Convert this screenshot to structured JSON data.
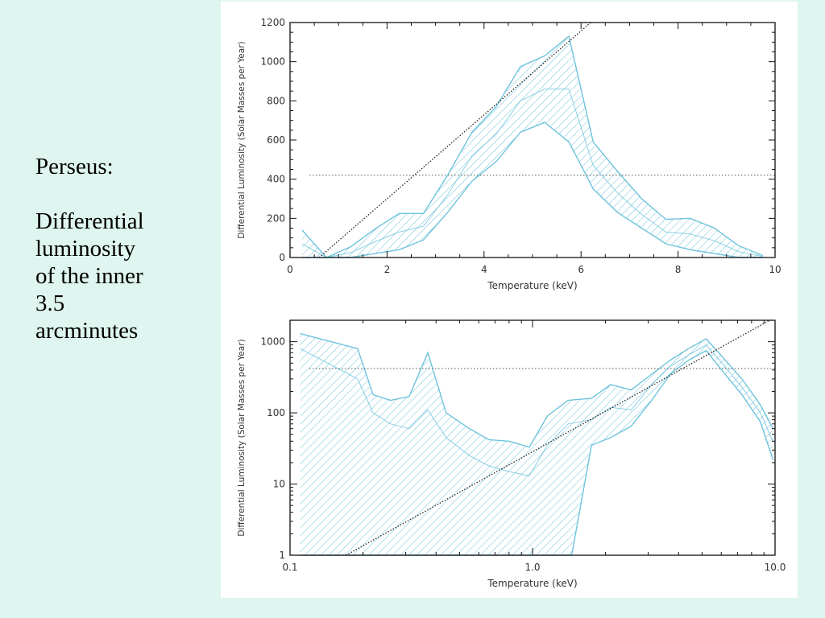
{
  "slide": {
    "title": "Perseus:",
    "body_lines": [
      "Differential",
      "luminosity",
      "of the inner",
      "3.5",
      "arcminutes"
    ]
  },
  "colors": {
    "background": "#dff5ef",
    "band": "#6fc3dc",
    "axis": "#111111"
  },
  "chart_data": [
    {
      "type": "area",
      "xlabel": "Temperature (keV)",
      "ylabel": "Differential Luminosity (Solar Masses per Year)",
      "xscale": "linear",
      "yscale": "linear",
      "xlim": [
        0,
        10
      ],
      "ylim": [
        0,
        1200
      ],
      "xticks": [
        0,
        2,
        4,
        6,
        8,
        10
      ],
      "yticks": [
        0,
        200,
        400,
        600,
        800,
        1000,
        1200
      ],
      "grid": false,
      "band_upper": [
        [
          0.25,
          140
        ],
        [
          0.75,
          0
        ],
        [
          1.25,
          55
        ],
        [
          1.75,
          145
        ],
        [
          2.25,
          225
        ],
        [
          2.75,
          225
        ],
        [
          3.25,
          420
        ],
        [
          3.75,
          640
        ],
        [
          4.25,
          770
        ],
        [
          4.75,
          975
        ],
        [
          5.25,
          1030
        ],
        [
          5.75,
          1130
        ],
        [
          6.25,
          590
        ],
        [
          6.75,
          440
        ],
        [
          7.25,
          300
        ],
        [
          7.75,
          195
        ],
        [
          8.25,
          200
        ],
        [
          8.75,
          150
        ],
        [
          9.25,
          60
        ],
        [
          9.75,
          10
        ]
      ],
      "band_lower": [
        [
          0.25,
          0
        ],
        [
          0.75,
          0
        ],
        [
          1.25,
          0
        ],
        [
          1.75,
          20
        ],
        [
          2.25,
          40
        ],
        [
          2.75,
          90
        ],
        [
          3.25,
          230
        ],
        [
          3.75,
          390
        ],
        [
          4.25,
          490
        ],
        [
          4.75,
          640
        ],
        [
          5.25,
          690
        ],
        [
          5.75,
          590
        ],
        [
          6.25,
          350
        ],
        [
          6.75,
          230
        ],
        [
          7.25,
          150
        ],
        [
          7.75,
          70
        ],
        [
          8.25,
          40
        ],
        [
          8.75,
          20
        ],
        [
          9.25,
          0
        ],
        [
          9.75,
          0
        ]
      ],
      "band_mid": [
        [
          0.25,
          70
        ],
        [
          0.75,
          0
        ],
        [
          1.25,
          25
        ],
        [
          1.75,
          80
        ],
        [
          2.25,
          130
        ],
        [
          2.75,
          160
        ],
        [
          3.25,
          320
        ],
        [
          3.75,
          520
        ],
        [
          4.25,
          630
        ],
        [
          4.75,
          800
        ],
        [
          5.25,
          860
        ],
        [
          5.75,
          860
        ],
        [
          6.25,
          470
        ],
        [
          6.75,
          330
        ],
        [
          7.25,
          220
        ],
        [
          7.75,
          130
        ],
        [
          8.25,
          120
        ],
        [
          8.75,
          85
        ],
        [
          9.25,
          30
        ],
        [
          9.75,
          5
        ]
      ],
      "reference_line": {
        "style": "dotted-horizontal",
        "y": 420
      },
      "fit_line": {
        "style": "dotted",
        "points": [
          [
            0.6,
            0
          ],
          [
            6.2,
            1200
          ]
        ]
      }
    },
    {
      "type": "area",
      "xlabel": "Temperature (keV)",
      "ylabel": "Differential Luminosity (Solar Masses per Year)",
      "xscale": "log",
      "yscale": "log",
      "xlim": [
        0.1,
        10
      ],
      "ylim": [
        1,
        2000
      ],
      "xtick_labels": [
        "0.1",
        "1.0",
        "10.0"
      ],
      "ytick_labels": [
        "1",
        "10",
        "100",
        "1000"
      ],
      "grid": false,
      "band_upper": [
        [
          0.11,
          1300
        ],
        [
          0.19,
          800
        ],
        [
          0.22,
          180
        ],
        [
          0.26,
          150
        ],
        [
          0.31,
          170
        ],
        [
          0.37,
          700
        ],
        [
          0.44,
          100
        ],
        [
          0.55,
          60
        ],
        [
          0.66,
          42
        ],
        [
          0.8,
          40
        ],
        [
          0.97,
          33
        ],
        [
          1.15,
          90
        ],
        [
          1.4,
          150
        ],
        [
          1.75,
          160
        ],
        [
          2.1,
          250
        ],
        [
          2.55,
          210
        ],
        [
          3.1,
          350
        ],
        [
          3.7,
          550
        ],
        [
          4.4,
          800
        ],
        [
          5.2,
          1100
        ],
        [
          6.1,
          600
        ],
        [
          7.3,
          300
        ],
        [
          8.7,
          130
        ],
        [
          9.8,
          60
        ]
      ],
      "band_lower": [
        [
          0.11,
          1
        ],
        [
          1.45,
          1
        ],
        [
          1.75,
          35
        ],
        [
          2.1,
          45
        ],
        [
          2.55,
          65
        ],
        [
          3.1,
          150
        ],
        [
          3.7,
          350
        ],
        [
          4.4,
          550
        ],
        [
          5.2,
          750
        ],
        [
          6.1,
          380
        ],
        [
          7.3,
          180
        ],
        [
          8.7,
          75
        ],
        [
          9.8,
          22
        ]
      ],
      "band_mid": [
        [
          0.11,
          800
        ],
        [
          0.19,
          300
        ],
        [
          0.22,
          100
        ],
        [
          0.26,
          70
        ],
        [
          0.31,
          60
        ],
        [
          0.37,
          110
        ],
        [
          0.44,
          45
        ],
        [
          0.55,
          25
        ],
        [
          0.66,
          18
        ],
        [
          0.8,
          15
        ],
        [
          0.97,
          13
        ],
        [
          1.15,
          35
        ],
        [
          1.4,
          70
        ],
        [
          1.75,
          80
        ],
        [
          2.1,
          120
        ],
        [
          2.55,
          110
        ],
        [
          3.1,
          250
        ],
        [
          3.7,
          450
        ],
        [
          4.4,
          650
        ],
        [
          5.2,
          900
        ],
        [
          6.1,
          480
        ],
        [
          7.3,
          230
        ],
        [
          8.7,
          100
        ],
        [
          9.8,
          40
        ]
      ],
      "reference_line": {
        "style": "dotted-horizontal",
        "y": 420
      },
      "fit_line": {
        "style": "dotted",
        "points": [
          [
            0.17,
            1
          ],
          [
            9.5,
            2000
          ]
        ]
      }
    }
  ]
}
